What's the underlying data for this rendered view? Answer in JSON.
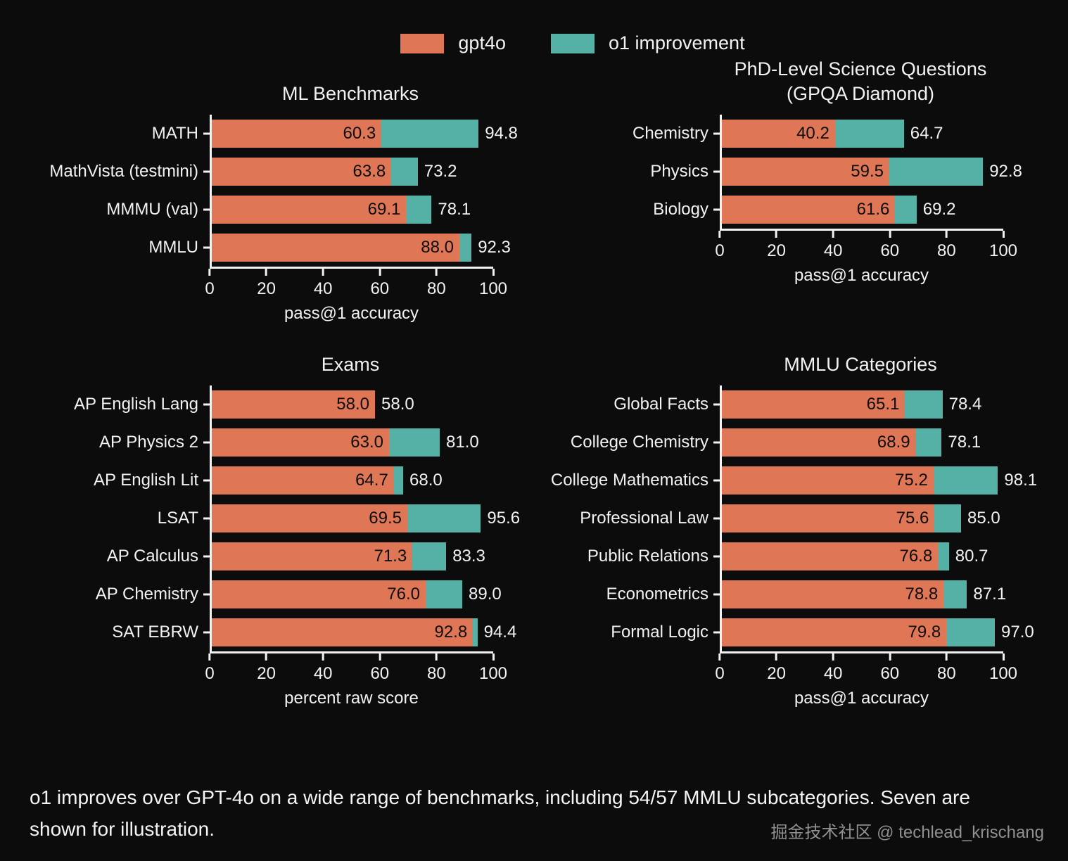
{
  "legend": {
    "items": [
      {
        "label": "gpt4o",
        "color": "#df7757"
      },
      {
        "label": "o1 improvement",
        "color": "#55b1a5"
      }
    ]
  },
  "colors": {
    "background": "#0c0c0c",
    "bar_gpt4o": "#df7757",
    "bar_o1_improvement": "#55b1a5",
    "text": "#f2f2f2",
    "value_label_inside": "#0c0c0c",
    "watermark": "#909090"
  },
  "caption": "o1 improves over GPT-4o on a wide range of benchmarks, including 54/57 MMLU subcategories. Seven are shown for illustration.",
  "watermark": "掘金技术社区 @ techlead_krischang",
  "chart_data": [
    {
      "type": "bar",
      "orientation": "horizontal",
      "title": "ML Benchmarks",
      "xlabel": "pass@1 accuracy",
      "xlim": [
        0,
        100
      ],
      "xticks": [
        0,
        20,
        40,
        60,
        80,
        100
      ],
      "grid": false,
      "categories": [
        "MATH",
        "MathVista (testmini)",
        "MMMU (val)",
        "MMLU"
      ],
      "series": [
        {
          "name": "gpt4o",
          "values": [
            60.3,
            63.8,
            69.1,
            88.0
          ]
        },
        {
          "name": "o1",
          "values": [
            94.8,
            73.2,
            78.1,
            92.3
          ]
        }
      ]
    },
    {
      "type": "bar",
      "orientation": "horizontal",
      "title": "PhD-Level Science Questions\n(GPQA Diamond)",
      "xlabel": "pass@1 accuracy",
      "xlim": [
        0,
        100
      ],
      "xticks": [
        0,
        20,
        40,
        60,
        80,
        100
      ],
      "grid": false,
      "categories": [
        "Chemistry",
        "Physics",
        "Biology"
      ],
      "series": [
        {
          "name": "gpt4o",
          "values": [
            40.2,
            59.5,
            61.6
          ]
        },
        {
          "name": "o1",
          "values": [
            64.7,
            92.8,
            69.2
          ]
        }
      ]
    },
    {
      "type": "bar",
      "orientation": "horizontal",
      "title": "Exams",
      "xlabel": "percent raw score",
      "xlim": [
        0,
        100
      ],
      "xticks": [
        0,
        20,
        40,
        60,
        80,
        100
      ],
      "grid": false,
      "categories": [
        "AP English Lang",
        "AP Physics 2",
        "AP English Lit",
        "LSAT",
        "AP Calculus",
        "AP Chemistry",
        "SAT EBRW"
      ],
      "series": [
        {
          "name": "gpt4o",
          "values": [
            58.0,
            63.0,
            64.7,
            69.5,
            71.3,
            76.0,
            92.8
          ]
        },
        {
          "name": "o1",
          "values": [
            58.0,
            81.0,
            68.0,
            95.6,
            83.3,
            89.0,
            94.4
          ]
        }
      ]
    },
    {
      "type": "bar",
      "orientation": "horizontal",
      "title": "MMLU Categories",
      "xlabel": "pass@1 accuracy",
      "xlim": [
        0,
        100
      ],
      "xticks": [
        0,
        20,
        40,
        60,
        80,
        100
      ],
      "grid": false,
      "categories": [
        "Global Facts",
        "College Chemistry",
        "College Mathematics",
        "Professional Law",
        "Public Relations",
        "Econometrics",
        "Formal Logic"
      ],
      "series": [
        {
          "name": "gpt4o",
          "values": [
            65.1,
            68.9,
            75.2,
            75.6,
            76.8,
            78.8,
            79.8
          ]
        },
        {
          "name": "o1",
          "values": [
            78.4,
            78.1,
            98.1,
            85.0,
            80.7,
            87.1,
            97.0
          ]
        }
      ]
    }
  ]
}
